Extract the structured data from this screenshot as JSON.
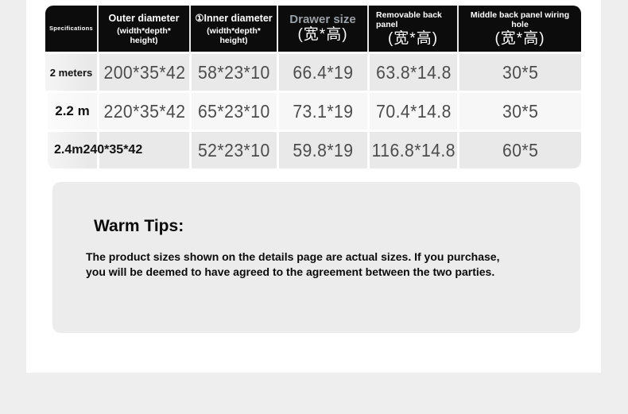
{
  "colors": {
    "page_bg": "#eeeeee",
    "panel_bg": "#ffffff",
    "header_bg": "#0c0c0c",
    "row_odd": "#e9e9e9",
    "row_even": "#f7f7f7",
    "drawer_label": "#99a0a6",
    "value_text": "#4c4c4c",
    "warm_box_bg": "#ececec"
  },
  "table": {
    "header": {
      "col_specifications": "Specifications",
      "col_outer": "Outer diameter",
      "col_outer_sub": "(width*depth* height)",
      "col_inner": "①Inner diameter",
      "col_inner_sub": "(width*depth* height)",
      "col_drawer": "Drawer size",
      "col_drawer_sub": "(宽*高)",
      "col_back_panel": "Removable back panel",
      "col_back_panel_sub": "(宽*高)",
      "col_wiring_hole": "Middle back panel wiring hole",
      "col_wiring_hole_sub": "(宽*高)"
    },
    "rows": [
      {
        "spec": "2 meters",
        "cells": [
          "200*35*42",
          "58*23*10",
          "66.4*19",
          "63.8*14.8",
          "30*5"
        ]
      },
      {
        "spec": "2.2 m",
        "cells": [
          "220*35*42",
          "65*23*10",
          "73.1*19",
          "70.4*14.8",
          "30*5"
        ]
      },
      {
        "spec": "2.4m240*35*42",
        "cells": [
          "",
          "52*23*10",
          "59.8*19",
          "116.8*14.8",
          "60*5"
        ]
      }
    ]
  },
  "warm_tips": {
    "title": "Warm Tips:",
    "body": "The product sizes shown on the details page are actual sizes. If you purchase, you will be deemed to have agreed to the agreement between the two parties."
  }
}
